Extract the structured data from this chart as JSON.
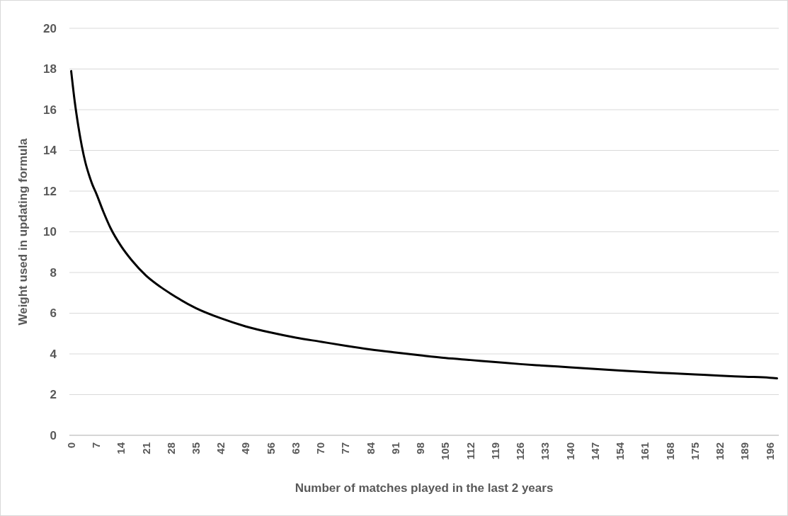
{
  "chart_data": {
    "type": "line",
    "xlabel": "Number of matches played in the last 2 years",
    "ylabel": "Weight used in updating formula",
    "xlim": [
      -0.5,
      198.5
    ],
    "xticks": [
      0,
      7,
      14,
      21,
      28,
      35,
      42,
      49,
      56,
      63,
      70,
      77,
      84,
      91,
      98,
      105,
      112,
      119,
      126,
      133,
      140,
      147,
      154,
      161,
      168,
      175,
      182,
      189,
      196
    ],
    "ylim": [
      0,
      20
    ],
    "yticks": [
      0,
      2,
      4,
      6,
      8,
      10,
      12,
      14,
      16,
      18,
      20
    ],
    "grid": "y",
    "marker": "none",
    "line_style": "solid",
    "series": [
      {
        "color": "#000000",
        "x": [
          0,
          1,
          2,
          3,
          4,
          5,
          6,
          7,
          9,
          11,
          14,
          17,
          21,
          25,
          28,
          35,
          42,
          49,
          56,
          63,
          70,
          77,
          84,
          91,
          98,
          105,
          112,
          119,
          126,
          133,
          140,
          147,
          154,
          161,
          168,
          175,
          182,
          189,
          196,
          198
        ],
        "values": [
          17.9,
          16.4,
          15.2,
          14.2,
          13.4,
          12.8,
          12.3,
          11.9,
          11.0,
          10.2,
          9.3,
          8.6,
          7.85,
          7.3,
          6.95,
          6.25,
          5.75,
          5.35,
          5.05,
          4.8,
          4.6,
          4.4,
          4.22,
          4.07,
          3.93,
          3.8,
          3.7,
          3.6,
          3.5,
          3.42,
          3.34,
          3.26,
          3.18,
          3.11,
          3.05,
          2.99,
          2.93,
          2.88,
          2.83,
          2.8
        ]
      }
    ]
  }
}
